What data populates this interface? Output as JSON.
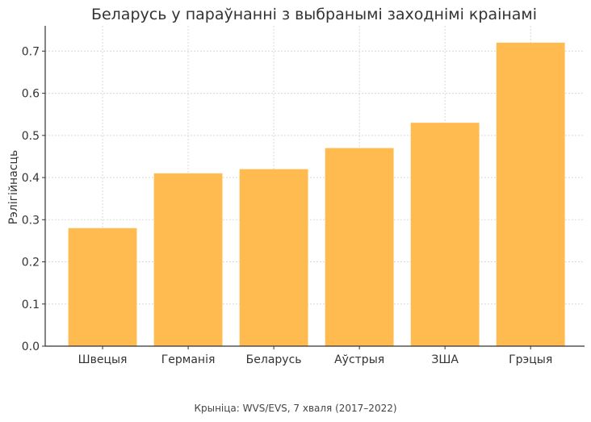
{
  "chart_data": {
    "type": "bar",
    "title": "Беларусь у параўнанні з выбранымі заходнімі краінамі",
    "xlabel": "",
    "ylabel": "Рэлігійнасць",
    "categories": [
      "Швецыя",
      "Германія",
      "Беларусь",
      "Аўстрыя",
      "ЗША",
      "Грэцыя"
    ],
    "values": [
      0.28,
      0.41,
      0.42,
      0.47,
      0.53,
      0.72
    ],
    "ylim": [
      0,
      0.76
    ],
    "yticks": [
      0.0,
      0.1,
      0.2,
      0.3,
      0.4,
      0.5,
      0.6,
      0.7
    ],
    "ytick_labels": [
      "0.0",
      "0.1",
      "0.2",
      "0.3",
      "0.4",
      "0.5",
      "0.6",
      "0.7"
    ],
    "grid": true,
    "bar_color": "#FFBB4F"
  },
  "source": "Крыніца: WVS/EVS, 7 хваля (2017–2022)"
}
